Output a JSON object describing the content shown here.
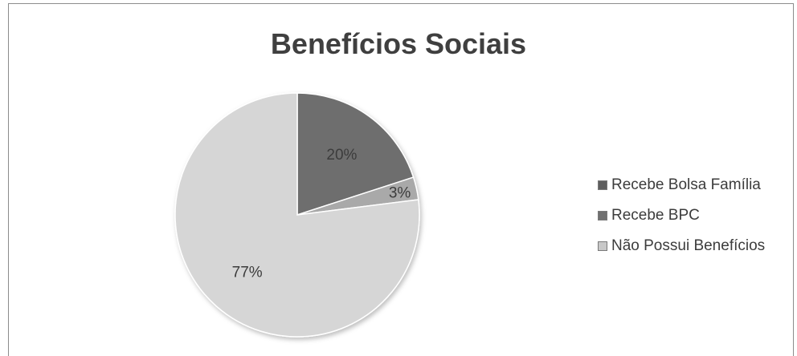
{
  "chart_data": {
    "type": "pie",
    "title": "Benefícios Sociais",
    "slices": [
      {
        "label": "Recebe Bolsa Família",
        "value": 20,
        "display": "20%",
        "color": "#6e6e6e"
      },
      {
        "label": "Recebe BPC",
        "value": 3,
        "display": "3%",
        "color": "#a9a9a9"
      },
      {
        "label": "Não Possui Benefícios",
        "value": 77,
        "display": "77%",
        "color": "#d6d6d6"
      }
    ],
    "legend_position": "right"
  },
  "legend_swatch_colors": [
    "#5e5e5e",
    "#707070",
    "#c8c8c8"
  ]
}
